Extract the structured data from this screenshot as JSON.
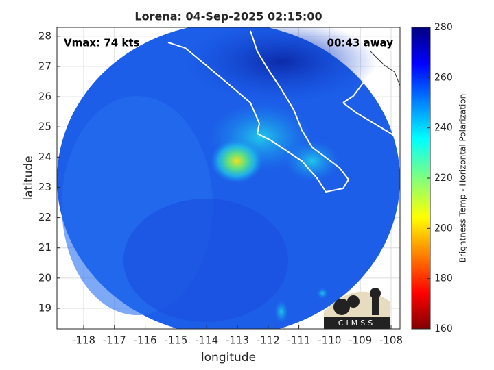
{
  "chart_data": {
    "type": "map",
    "title": "Lorena: 04-Sep-2025 02:15:00",
    "annotations": [
      "Vmax: 74 kts",
      "00:43 away"
    ],
    "xlabel": "longitude",
    "ylabel": "latitude",
    "xlim": [
      -118.87,
      -107.71
    ],
    "ylim": [
      18.32,
      28.29
    ],
    "xticks": [
      -118,
      -117,
      -116,
      -115,
      -114,
      -113,
      -112,
      -111,
      -110,
      -109,
      -108
    ],
    "yticks": [
      19,
      20,
      21,
      22,
      23,
      24,
      25,
      26,
      27,
      28
    ],
    "grid": true,
    "colorbar": {
      "label": "Brightness Temp - Horizontal Polarization",
      "lim": [
        160,
        280
      ],
      "ticks": [
        160,
        180,
        200,
        220,
        240,
        260,
        280
      ],
      "colormap": "jet"
    },
    "logo": "CIMSS"
  }
}
